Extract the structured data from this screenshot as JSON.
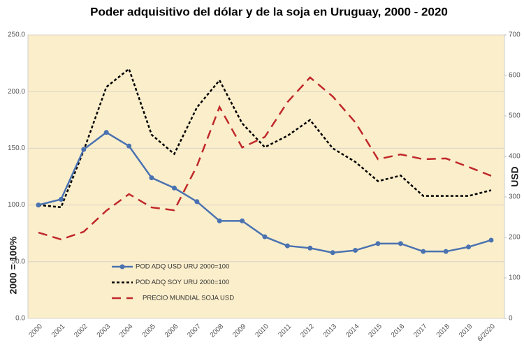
{
  "chart_data": {
    "type": "line",
    "title": "Poder adquisitivo del dólar y de la soja en Uruguay, 2000 - 2020",
    "y_label": "2000  = 100%",
    "y2_label": "USD",
    "categories": [
      "2000",
      "2001",
      "2002",
      "2003",
      "2004",
      "2005",
      "2006",
      "2007",
      "2008",
      "2009",
      "2010",
      "2011",
      "2012",
      "2013",
      "2014",
      "2015",
      "2016",
      "2017",
      "2018",
      "2019",
      "6/2020"
    ],
    "series": [
      {
        "name": "POD ADQ USD URU 2000=100",
        "color": "#4a72b0",
        "style": "solid-marker",
        "values": [
          100,
          105,
          149,
          164,
          152,
          124,
          115,
          103,
          86,
          86,
          72,
          64,
          62,
          58,
          60,
          66,
          66,
          59,
          59,
          63,
          69
        ]
      },
      {
        "name": "POD ADQ SOY URU 2000=100",
        "color": "#000000",
        "style": "dotted",
        "values": [
          100,
          98,
          148,
          204,
          220,
          162,
          145,
          186,
          210,
          172,
          151,
          161,
          175,
          150,
          138,
          121,
          126,
          108,
          108,
          108,
          113
        ]
      },
      {
        "name": "PRECIO MUNDIAL SOJA USD",
        "color": "#c0282a",
        "style": "dashed",
        "axis": "y2",
        "values": [
          212,
          195,
          214,
          266,
          307,
          274,
          267,
          376,
          522,
          422,
          448,
          534,
          595,
          548,
          484,
          393,
          405,
          393,
          395,
          374,
          352
        ]
      }
    ],
    "ylim": [
      0,
      250
    ],
    "yticks": [
      {
        "value": 0,
        "label": "0.0"
      },
      {
        "value": 50,
        "label": "50.0"
      },
      {
        "value": 100,
        "label": "100.0"
      },
      {
        "value": 150,
        "label": "150.0"
      },
      {
        "value": 200,
        "label": "200.0"
      },
      {
        "value": 250,
        "label": "250.0"
      }
    ],
    "y2lim": [
      0,
      700
    ],
    "y2ticks": [
      0,
      100,
      200,
      300,
      400,
      500,
      600,
      700
    ],
    "grid": true,
    "legend": "lower-left",
    "background": "#fbeecb"
  }
}
